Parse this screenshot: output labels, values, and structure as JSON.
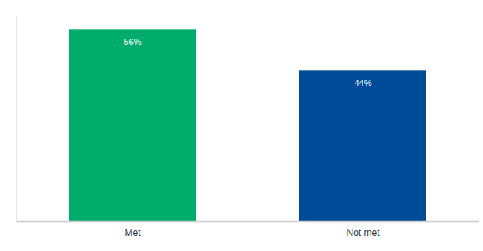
{
  "chart_data": {
    "type": "bar",
    "categories": [
      "Met",
      "Not met"
    ],
    "values": [
      56,
      44
    ],
    "value_labels": [
      "56%",
      "44%"
    ],
    "colors": [
      "#00ac6b",
      "#004b98"
    ],
    "data_labels": true,
    "tick_labels": "x",
    "ylim": [
      0,
      60
    ],
    "yticks": [],
    "grid": false
  }
}
